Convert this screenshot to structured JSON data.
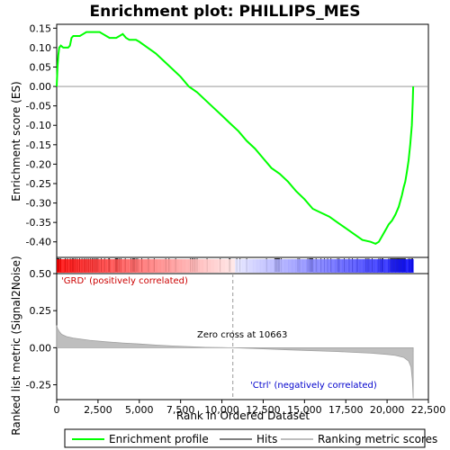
{
  "chart_data": {
    "type": "line",
    "title": "Enrichment plot: PHILLIPS_MES",
    "xlabel": "Rank in Ordered Dataset",
    "top_panel": {
      "ylabel": "Enrichment score (ES)",
      "xlim": [
        0,
        22500
      ],
      "ylim": [
        -0.44,
        0.16
      ],
      "yticks": [
        0.15,
        0.1,
        0.05,
        0.0,
        -0.05,
        -0.1,
        -0.15,
        -0.2,
        -0.25,
        -0.3,
        -0.35,
        -0.4
      ],
      "ytick_labels": [
        "0.15",
        "0.10",
        "0.05",
        "0.00",
        "-0.05",
        "-0.10",
        "-0.15",
        "-0.20",
        "-0.25",
        "-0.30",
        "-0.35",
        "-0.40"
      ],
      "series": [
        {
          "name": "Enrichment profile",
          "color": "#00ff00",
          "x": [
            0,
            50,
            100,
            150,
            250,
            400,
            500,
            700,
            800,
            900,
            1000,
            1200,
            1400,
            1600,
            1800,
            2000,
            2200,
            2400,
            2600,
            2800,
            3000,
            3200,
            3400,
            3600,
            3800,
            4000,
            4200,
            4400,
            4600,
            4800,
            5000,
            5500,
            6000,
            6500,
            7000,
            7500,
            8000,
            8500,
            9000,
            9500,
            10000,
            10500,
            11000,
            11500,
            12000,
            12500,
            13000,
            13500,
            14000,
            14500,
            15000,
            15500,
            16000,
            16500,
            17000,
            17500,
            18000,
            18500,
            19000,
            19300,
            19500,
            19700,
            19900,
            20100,
            20300,
            20500,
            20700,
            20900,
            21000,
            21100,
            21200,
            21300,
            21400,
            21500,
            21550,
            21580
          ],
          "y": [
            0.0,
            0.05,
            0.08,
            0.1,
            0.105,
            0.1,
            0.1,
            0.1,
            0.105,
            0.125,
            0.13,
            0.13,
            0.13,
            0.135,
            0.14,
            0.14,
            0.14,
            0.14,
            0.14,
            0.135,
            0.13,
            0.125,
            0.125,
            0.125,
            0.13,
            0.135,
            0.125,
            0.12,
            0.12,
            0.12,
            0.115,
            0.1,
            0.085,
            0.065,
            0.045,
            0.025,
            0.0,
            -0.015,
            -0.035,
            -0.055,
            -0.075,
            -0.095,
            -0.115,
            -0.14,
            -0.16,
            -0.185,
            -0.21,
            -0.225,
            -0.245,
            -0.27,
            -0.29,
            -0.315,
            -0.325,
            -0.335,
            -0.35,
            -0.365,
            -0.38,
            -0.395,
            -0.4,
            -0.405,
            -0.4,
            -0.385,
            -0.37,
            -0.355,
            -0.345,
            -0.33,
            -0.31,
            -0.28,
            -0.26,
            -0.245,
            -0.22,
            -0.19,
            -0.15,
            -0.1,
            -0.04,
            0.0
          ]
        }
      ]
    },
    "hits_panel": {
      "series_name": "Hits",
      "hit_ranks": [
        30,
        70,
        110,
        160,
        250,
        520,
        650,
        820,
        940,
        1020,
        1110,
        1240,
        1390,
        1530,
        1670,
        1790,
        1910,
        2030,
        2140,
        2230,
        2330,
        2410,
        2500,
        2700,
        2900,
        3150,
        3200,
        3550,
        3600,
        3650,
        3700,
        3800,
        3900,
        4150,
        4500,
        4600,
        4650,
        4720,
        4800,
        4900,
        5150,
        5550,
        5900,
        6600,
        6800,
        7200,
        8100,
        8200,
        8280,
        8380,
        8500,
        9100,
        9900,
        10450,
        10500,
        10900,
        11100,
        11500,
        12700,
        13200,
        13250,
        13300,
        13350,
        13400,
        13450,
        13500,
        13600,
        14600,
        14700,
        15200,
        15300,
        15350,
        15400,
        15450,
        15500,
        15700,
        16000,
        16200,
        16400,
        16600,
        17000,
        17100,
        17400,
        17700,
        17900,
        18200,
        18700,
        18800,
        18900,
        19100,
        19500,
        19600,
        19700,
        19750,
        20100,
        20200,
        20250,
        20300,
        20350,
        20400,
        20450,
        20500,
        20550,
        20600,
        20650,
        20700,
        20750,
        20800,
        20850,
        20900,
        20950,
        21000,
        21050,
        21100,
        21300,
        21400,
        21500,
        21550
      ],
      "color_bar": {
        "positive_color": "#ff0000",
        "negative_color": "#0000ff",
        "zero_rank": 10663
      }
    },
    "bottom_panel": {
      "ylabel": "Ranked list metric (Signal2Noise)",
      "series_name": "Ranking metric scores",
      "ylim": [
        -0.35,
        0.5
      ],
      "yticks": [
        0.5,
        0.25,
        0.0,
        -0.25
      ],
      "ytick_labels": [
        "0.50",
        "0.25",
        "0.00",
        "-0.25"
      ],
      "metric_x": [
        0,
        50,
        150,
        300,
        600,
        1000,
        2000,
        3000,
        4000,
        5000,
        6000,
        7000,
        8000,
        9000,
        10000,
        10663,
        12000,
        13000,
        14000,
        15000,
        16000,
        17000,
        18000,
        19000,
        20000,
        20500,
        21000,
        21300,
        21450,
        21530,
        21580
      ],
      "metric_y": [
        0.15,
        0.13,
        0.11,
        0.09,
        0.075,
        0.065,
        0.05,
        0.04,
        0.032,
        0.025,
        0.018,
        0.012,
        0.007,
        0.003,
        0.001,
        0.0,
        -0.005,
        -0.01,
        -0.014,
        -0.018,
        -0.022,
        -0.026,
        -0.031,
        -0.037,
        -0.045,
        -0.052,
        -0.065,
        -0.09,
        -0.13,
        -0.22,
        -0.34
      ],
      "annotations": {
        "positive_label": "'GRD' (positively correlated)",
        "zero_cross": "Zero cross at 10663",
        "negative_label": "'Ctrl' (negatively correlated)"
      }
    },
    "xticks": [
      0,
      2500,
      5000,
      7500,
      10000,
      12500,
      15000,
      17500,
      20000,
      22500
    ],
    "xtick_labels": [
      "0",
      "2,500",
      "5,000",
      "7,500",
      "10,000",
      "12,500",
      "15,000",
      "17,500",
      "20,000",
      "22,500"
    ],
    "legend": {
      "placement": "bottom",
      "items": [
        "Enrichment profile",
        "Hits",
        "Ranking metric scores"
      ],
      "colors": [
        "#00ff00",
        "#000000",
        "#bebebe"
      ]
    }
  }
}
